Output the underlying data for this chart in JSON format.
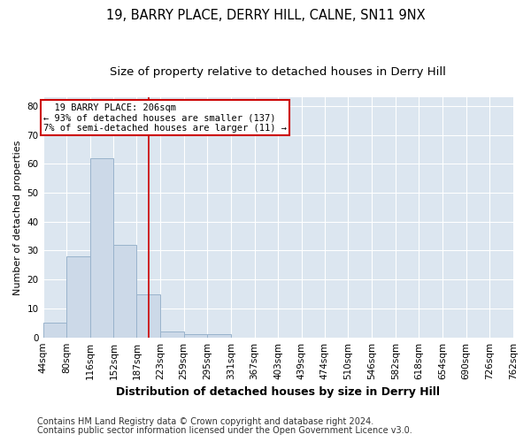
{
  "title1": "19, BARRY PLACE, DERRY HILL, CALNE, SN11 9NX",
  "title2": "Size of property relative to detached houses in Derry Hill",
  "xlabel": "Distribution of detached houses by size in Derry Hill",
  "ylabel": "Number of detached properties",
  "bin_edges": [
    44,
    80,
    116,
    152,
    187,
    223,
    259,
    295,
    331,
    367,
    403,
    439,
    474,
    510,
    546,
    582,
    618,
    654,
    690,
    726,
    762
  ],
  "bar_heights": [
    5,
    28,
    62,
    32,
    15,
    2,
    1,
    1,
    0,
    0,
    0,
    0,
    0,
    0,
    0,
    0,
    0,
    0,
    0,
    0
  ],
  "bar_color": "#ccd9e8",
  "bar_edgecolor": "#99b3cc",
  "bar_linewidth": 0.7,
  "vline_x": 206,
  "vline_color": "#cc0000",
  "vline_linewidth": 1.2,
  "ylim": [
    0,
    83
  ],
  "yticks": [
    0,
    10,
    20,
    30,
    40,
    50,
    60,
    70,
    80
  ],
  "annotation_line1": "19 BARRY PLACE: 206sqm",
  "annotation_line2": "← 93% of detached houses are smaller (137)",
  "annotation_line3": "7% of semi-detached houses are larger (11) →",
  "annotation_box_facecolor": "#ffffff",
  "annotation_box_edgecolor": "#cc0000",
  "fig_bg_color": "#ffffff",
  "plot_bg_color": "#dce6f0",
  "grid_color": "#ffffff",
  "footnote1": "Contains HM Land Registry data © Crown copyright and database right 2024.",
  "footnote2": "Contains public sector information licensed under the Open Government Licence v3.0.",
  "title1_fontsize": 10.5,
  "title2_fontsize": 9.5,
  "xlabel_fontsize": 9,
  "ylabel_fontsize": 8,
  "tick_fontsize": 7.5,
  "annotation_fontsize": 7.5,
  "footnote_fontsize": 7
}
